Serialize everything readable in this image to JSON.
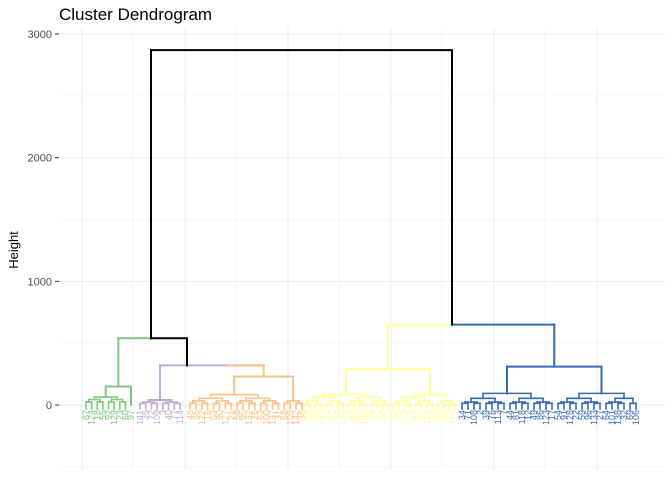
{
  "chart_data": {
    "type": "dendrogram",
    "title": "Cluster Dendrogram",
    "ylabel": "Height",
    "xlabel": "",
    "y_ticks": [
      0,
      1000,
      2000,
      3000
    ],
    "y_tick_labels": [
      "0",
      "1000",
      "2000",
      "3000"
    ],
    "ylim": [
      -500,
      3150
    ],
    "grid": true,
    "merges": {
      "root_height": 2870,
      "left_clusters_merge_height": 540,
      "right_clusters_merge_height": 650
    },
    "clusters": [
      {
        "color": "#7fc97f",
        "top_height": 540,
        "inner_heights": [
          150,
          60,
          40,
          20
        ]
      },
      {
        "color": "#beaed4",
        "top_height": 320,
        "inner_heights": [
          40,
          20,
          10
        ]
      },
      {
        "color": "#fdc086",
        "top_height": 320,
        "inner_heights": [
          230,
          110,
          80,
          50,
          30,
          10
        ]
      },
      {
        "color": "#ffff99",
        "top_height": 650,
        "inner_heights": [
          290,
          180,
          80,
          60,
          30,
          10
        ]
      },
      {
        "color": "#386cb0",
        "top_height": 650,
        "inner_heights": [
          310,
          170,
          90,
          50,
          20,
          10
        ]
      }
    ]
  }
}
